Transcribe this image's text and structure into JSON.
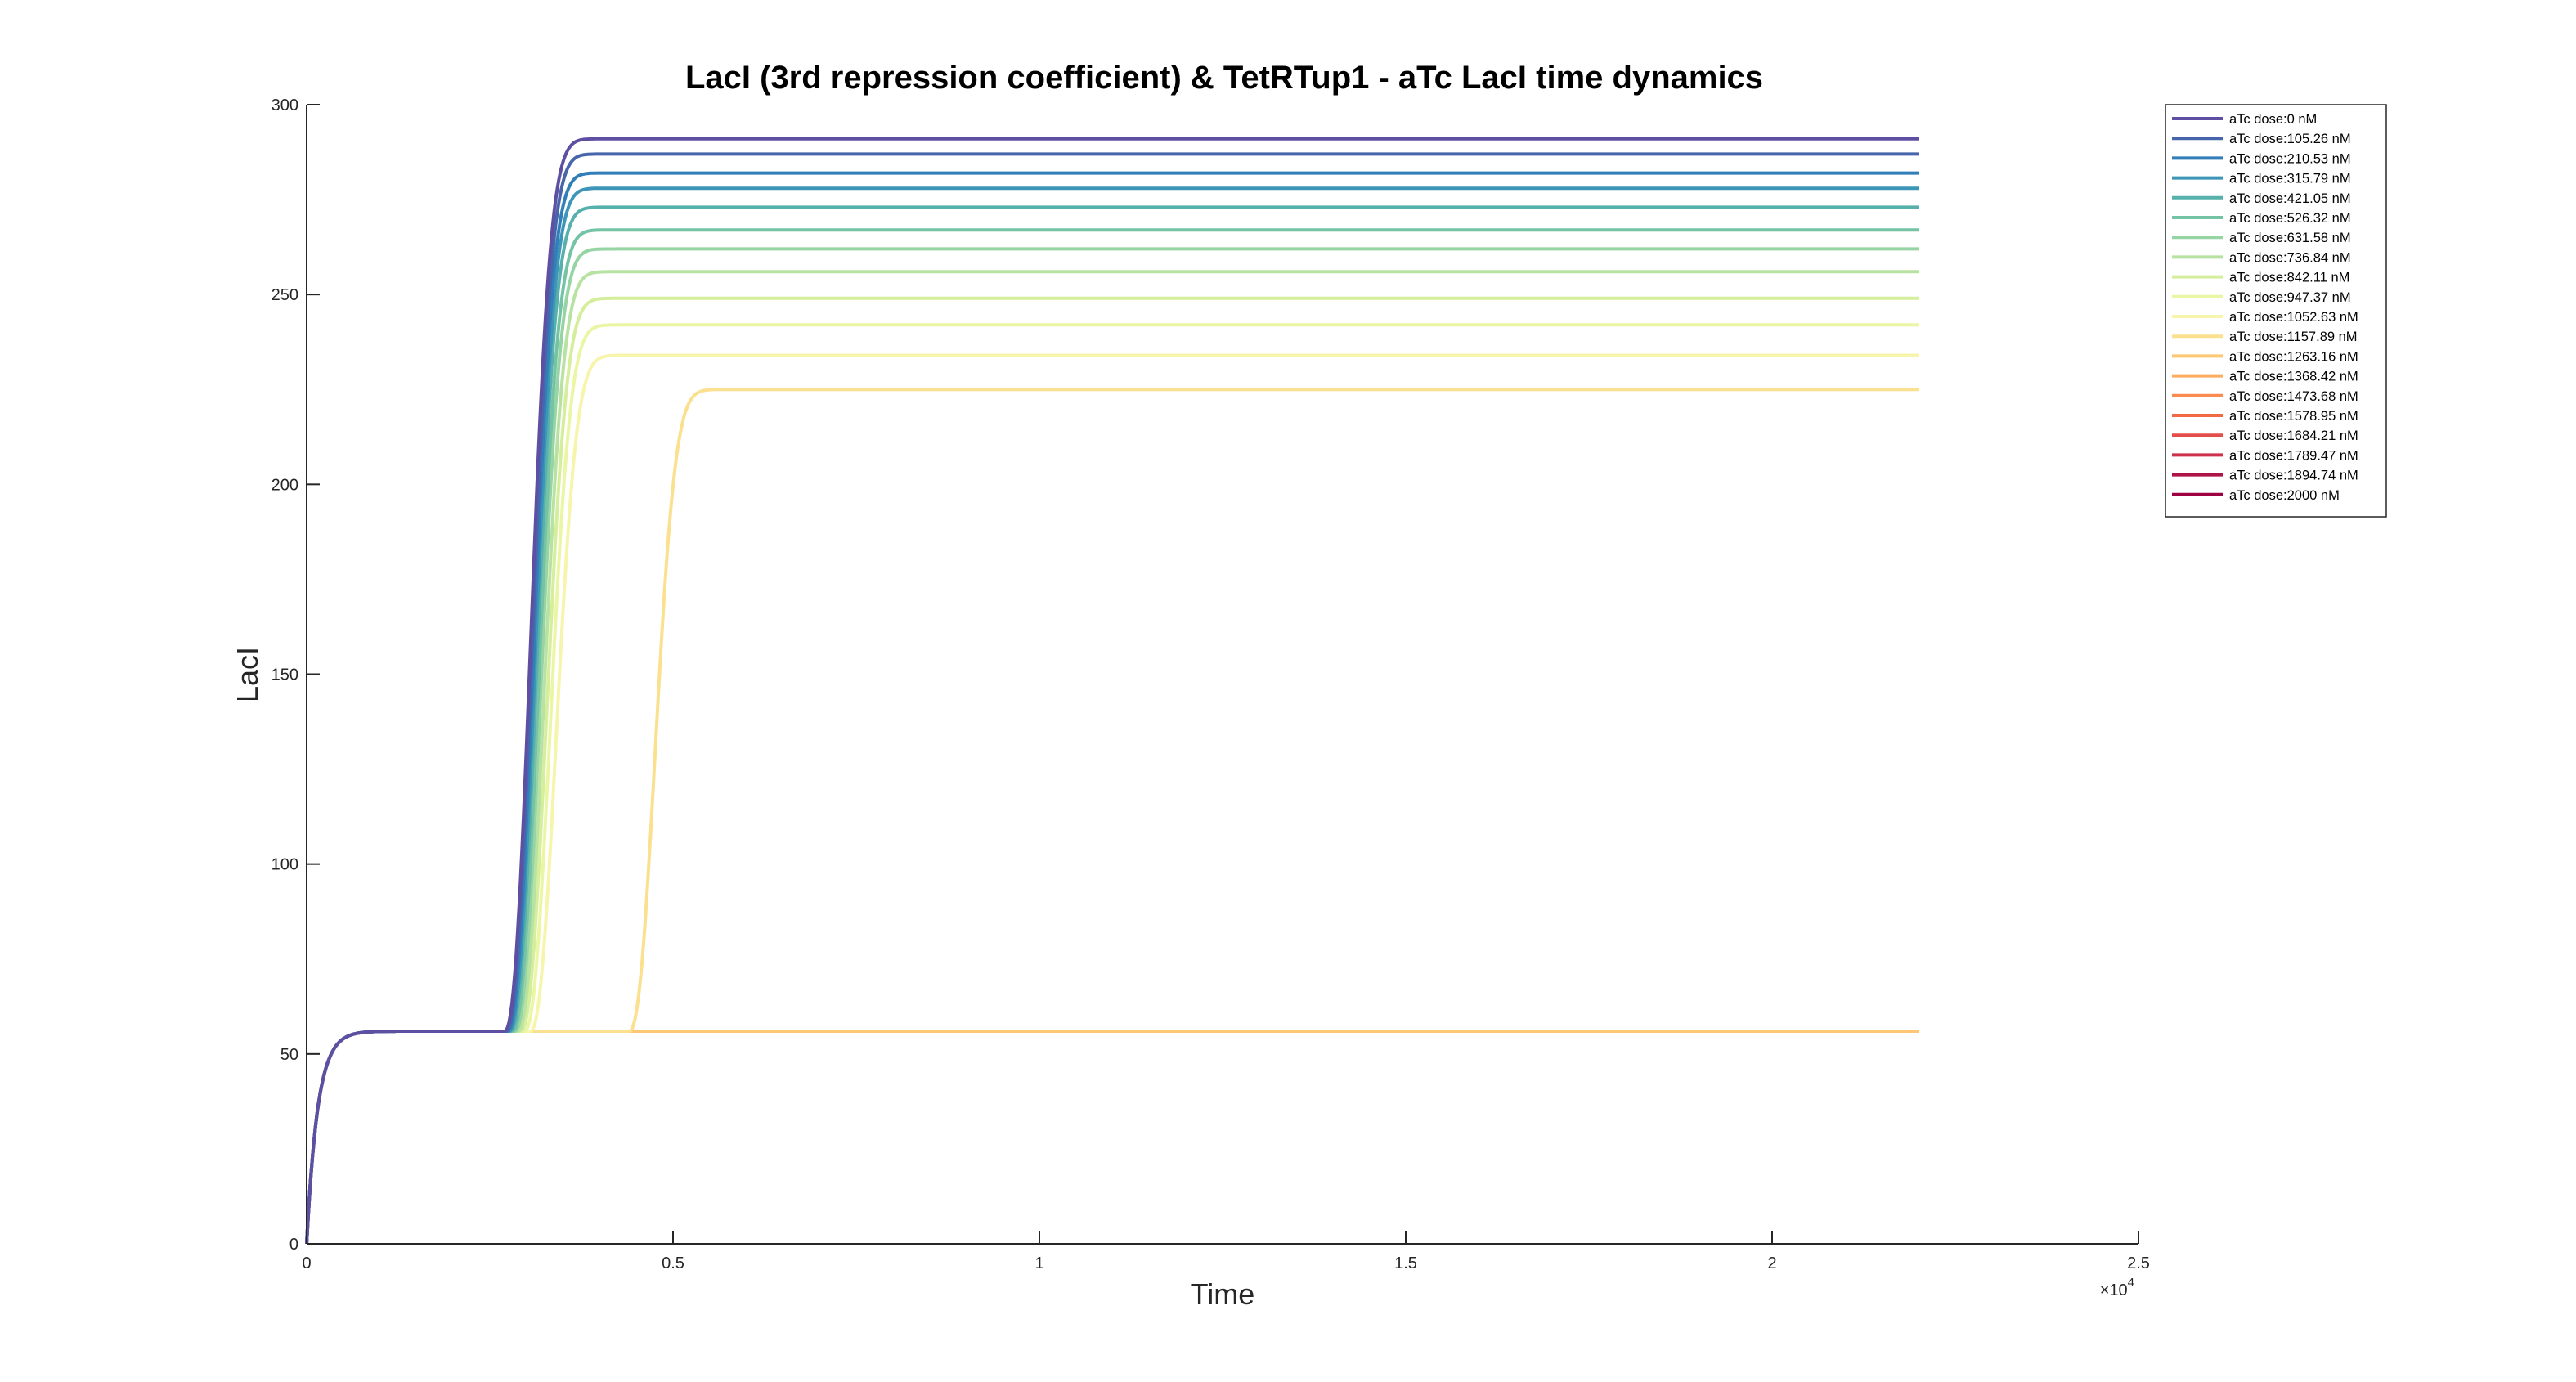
{
  "chart_data": {
    "type": "line",
    "title": "LacI (3rd repression coefficient) & TetRTup1 - aTc LacI time dynamics",
    "xlabel": "Time",
    "ylabel": "LacI",
    "x_exponent_label": "×10",
    "x_exponent_power": "4",
    "xlim": [
      0,
      25000
    ],
    "ylim": [
      0,
      300
    ],
    "x_ticks": [
      0,
      5000,
      10000,
      15000,
      20000,
      25000
    ],
    "x_tick_labels": [
      "0",
      "0.5",
      "1",
      "1.5",
      "2",
      "2.5"
    ],
    "y_ticks": [
      0,
      50,
      100,
      150,
      200,
      250,
      300
    ],
    "y_tick_labels": [
      "0",
      "50",
      "100",
      "150",
      "200",
      "250",
      "300"
    ],
    "grid": false,
    "legend_position": "top-right outside",
    "x_end": 22000,
    "baseline_level": 56,
    "baseline_rise_time": 450,
    "series": [
      {
        "name": "aTc dose:0 nM",
        "color": "#5e4fa2",
        "switch_time": 2700,
        "final": 291,
        "rise": 1000
      },
      {
        "name": "aTc dose:105.26 nM",
        "color": "#4765ab",
        "switch_time": 2720,
        "final": 287,
        "rise": 1000
      },
      {
        "name": "aTc dose:210.53 nM",
        "color": "#327eb9",
        "switch_time": 2740,
        "final": 282,
        "rise": 1000
      },
      {
        "name": "aTc dose:315.79 nM",
        "color": "#3d95b8",
        "switch_time": 2760,
        "final": 278,
        "rise": 1000
      },
      {
        "name": "aTc dose:421.05 nM",
        "color": "#56b0ac",
        "switch_time": 2780,
        "final": 273,
        "rise": 1000
      },
      {
        "name": "aTc dose:526.32 nM",
        "color": "#74c3a5",
        "switch_time": 2810,
        "final": 267,
        "rise": 1000
      },
      {
        "name": "aTc dose:631.58 nM",
        "color": "#97d4a4",
        "switch_time": 2840,
        "final": 262,
        "rise": 1000
      },
      {
        "name": "aTc dose:736.84 nM",
        "color": "#b8e2a1",
        "switch_time": 2880,
        "final": 256,
        "rise": 1000
      },
      {
        "name": "aTc dose:842.11 nM",
        "color": "#d5ee9b",
        "switch_time": 2920,
        "final": 249,
        "rise": 1000
      },
      {
        "name": "aTc dose:947.37 nM",
        "color": "#ebf6a5",
        "switch_time": 2970,
        "final": 242,
        "rise": 1000
      },
      {
        "name": "aTc dose:1052.63 nM",
        "color": "#f7f4ac",
        "switch_time": 3050,
        "final": 234,
        "rise": 1000
      },
      {
        "name": "aTc dose:1157.89 nM",
        "color": "#fbe08f",
        "switch_time": 4400,
        "final": 225,
        "rise": 1000
      },
      {
        "name": "aTc dose:1263.16 nM",
        "color": "#fdc774",
        "switch_time": null,
        "final": 56
      },
      {
        "name": "aTc dose:1368.42 nM",
        "color": "#fdab5f",
        "switch_time": null,
        "final": 56
      },
      {
        "name": "aTc dose:1473.68 nM",
        "color": "#fa8b51",
        "switch_time": null,
        "final": 56
      },
      {
        "name": "aTc dose:1578.95 nM",
        "color": "#f26a45",
        "switch_time": null,
        "final": 56
      },
      {
        "name": "aTc dose:1684.21 nM",
        "color": "#e34d4a",
        "switch_time": null,
        "final": 56
      },
      {
        "name": "aTc dose:1789.47 nM",
        "color": "#cc324c",
        "switch_time": null,
        "final": 56
      },
      {
        "name": "aTc dose:1894.74 nM",
        "color": "#ad1548",
        "switch_time": null,
        "final": 56
      },
      {
        "name": "aTc dose:2000 nM",
        "color": "#9e0142",
        "switch_time": null,
        "final": 56
      }
    ]
  }
}
